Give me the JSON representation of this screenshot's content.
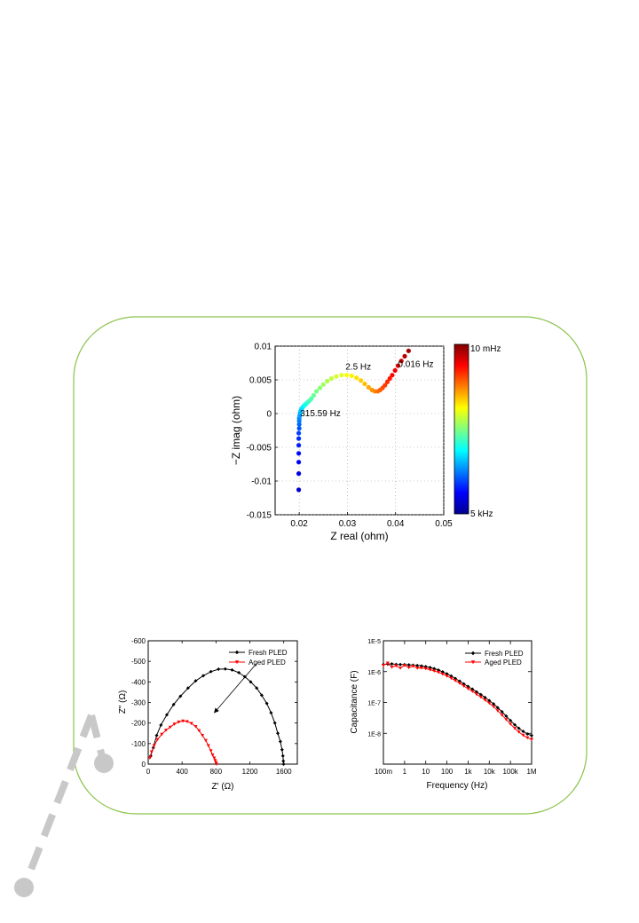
{
  "colors": {
    "frame": "#8bc34a",
    "connector": "#c8c8c8",
    "fresh": "#000000",
    "aged": "#ff0000"
  },
  "chart_data": [
    {
      "type": "scatter",
      "xlabel": "Z real (ohm)",
      "ylabel": "−Z imag (ohm)",
      "xlim": [
        0.015,
        0.05
      ],
      "ylim": [
        -0.015,
        0.01
      ],
      "xticks": [
        0.02,
        0.03,
        0.04,
        0.05
      ],
      "xtick_labels": [
        "0.02",
        "0.03",
        "0.04",
        "0.05"
      ],
      "yticks": [
        0.01,
        0.005,
        0,
        -0.005,
        -0.01,
        -0.015
      ],
      "ytick_labels": [
        "0.01",
        "0.005",
        "0",
        "-0.005",
        "-0.01",
        "-0.015"
      ],
      "grid": true,
      "colorbar": {
        "colormap": "jet",
        "top_label": "10 mHz",
        "bottom_label": "5 kHz"
      },
      "annotations": [
        {
          "text": "2.5 Hz",
          "x": 0.0296,
          "y": 0.0065
        },
        {
          "text": "0.016 Hz",
          "x": 0.0405,
          "y": 0.0069
        },
        {
          "text": "315.59 Hz",
          "x": 0.0202,
          "y": -0.0004
        }
      ],
      "points": [
        [
          0.0199,
          -0.0113
        ],
        [
          0.0199,
          -0.0089
        ],
        [
          0.0199,
          -0.0072
        ],
        [
          0.0199,
          -0.0059
        ],
        [
          0.0199,
          -0.0047
        ],
        [
          0.0199,
          -0.0037
        ],
        [
          0.0199,
          -0.0029
        ],
        [
          0.02,
          -0.0022
        ],
        [
          0.02,
          -0.0016
        ],
        [
          0.02,
          -0.0011
        ],
        [
          0.02,
          -0.0007
        ],
        [
          0.0201,
          -0.0003
        ],
        [
          0.0202,
          0.0001
        ],
        [
          0.0203,
          0.0004
        ],
        [
          0.0205,
          0.0007
        ],
        [
          0.0207,
          0.0009
        ],
        [
          0.0209,
          0.0011
        ],
        [
          0.0212,
          0.0013
        ],
        [
          0.0215,
          0.0015
        ],
        [
          0.0218,
          0.0017
        ],
        [
          0.0221,
          0.0019
        ],
        [
          0.0225,
          0.0022
        ],
        [
          0.023,
          0.0027
        ],
        [
          0.0236,
          0.0033
        ],
        [
          0.0243,
          0.0038
        ],
        [
          0.025,
          0.0043
        ],
        [
          0.0258,
          0.0048
        ],
        [
          0.0267,
          0.0052
        ],
        [
          0.0277,
          0.0055
        ],
        [
          0.0288,
          0.0057
        ],
        [
          0.0299,
          0.0057
        ],
        [
          0.0309,
          0.0056
        ],
        [
          0.0319,
          0.0053
        ],
        [
          0.0328,
          0.0049
        ],
        [
          0.0336,
          0.0044
        ],
        [
          0.0344,
          0.0039
        ],
        [
          0.0351,
          0.0035
        ],
        [
          0.0357,
          0.0033
        ],
        [
          0.0363,
          0.0033
        ],
        [
          0.0368,
          0.0035
        ],
        [
          0.0373,
          0.0038
        ],
        [
          0.0378,
          0.0042
        ],
        [
          0.0383,
          0.0047
        ],
        [
          0.0388,
          0.0052
        ],
        [
          0.0393,
          0.0057
        ],
        [
          0.0399,
          0.0064
        ],
        [
          0.0405,
          0.0071
        ],
        [
          0.0412,
          0.0078
        ],
        [
          0.0419,
          0.0085
        ],
        [
          0.0427,
          0.0093
        ]
      ]
    },
    {
      "type": "line",
      "xlabel": "Z' (Ω)",
      "ylabel": "Z\" (Ω)",
      "xlim": [
        0,
        1760
      ],
      "ylim": [
        0,
        -600
      ],
      "xticks": [
        0,
        400,
        800,
        1200,
        1600
      ],
      "xtick_labels": [
        "0",
        "400",
        "800",
        "1200",
        "1600"
      ],
      "yticks": [
        0,
        -100,
        -200,
        -300,
        -400,
        -500,
        -600
      ],
      "ytick_labels": [
        "0",
        "-100",
        "-200",
        "-300",
        "-400",
        "-500",
        "-600"
      ],
      "arrow": {
        "from": [
          1280,
          -490
        ],
        "to": [
          780,
          -250
        ]
      },
      "series": [
        {
          "name": "Fresh PLED",
          "color": "#000000",
          "marker": "diamond",
          "x": [
            30,
            60,
            100,
            150,
            220,
            300,
            380,
            470,
            560,
            650,
            740,
            830,
            910,
            990,
            1070,
            1140,
            1210,
            1280,
            1340,
            1400,
            1450,
            1495,
            1530,
            1560,
            1580,
            1590,
            1595,
            1598
          ],
          "y": [
            -40,
            -80,
            -140,
            -190,
            -240,
            -290,
            -330,
            -370,
            -405,
            -430,
            -450,
            -462,
            -463,
            -458,
            -445,
            -425,
            -400,
            -370,
            -335,
            -295,
            -250,
            -200,
            -150,
            -110,
            -70,
            -40,
            -15,
            0
          ]
        },
        {
          "name": "Aged PLED",
          "color": "#ff0000",
          "marker": "triangle-down",
          "x": [
            20,
            40,
            70,
            110,
            160,
            210,
            260,
            310,
            360,
            410,
            460,
            510,
            560,
            600,
            640,
            680,
            710,
            740,
            760,
            780,
            790,
            800,
            805
          ],
          "y": [
            -30,
            -60,
            -90,
            -120,
            -145,
            -165,
            -180,
            -195,
            -205,
            -210,
            -207,
            -198,
            -183,
            -163,
            -140,
            -115,
            -90,
            -65,
            -45,
            -30,
            -18,
            -8,
            0
          ]
        }
      ]
    },
    {
      "type": "line",
      "xlabel": "Frequency (Hz)",
      "ylabel": "Capacitance (F)",
      "xscale": "log",
      "yscale": "log",
      "xlim": [
        0.1,
        1000000
      ],
      "ylim": [
        1e-09,
        1e-05
      ],
      "xticks": [
        0.1,
        1,
        10,
        100,
        1000,
        10000,
        100000,
        1000000
      ],
      "xtick_labels": [
        "100m",
        "1",
        "10",
        "100",
        "1k",
        "10k",
        "100k",
        "1M"
      ],
      "yticks": [
        1e-05,
        1e-06,
        1e-07,
        1e-08
      ],
      "ytick_labels": [
        "1E-5",
        "1E-6",
        "1E-7",
        "1E-8"
      ],
      "series": [
        {
          "name": "Fresh PLED",
          "color": "#000000",
          "marker": "diamond",
          "x": [
            0.1,
            0.16,
            0.25,
            0.4,
            0.63,
            1,
            1.6,
            2.5,
            4,
            6.3,
            10,
            16,
            25,
            40,
            63,
            100,
            160,
            250,
            400,
            630,
            1000,
            1600,
            2500,
            4000,
            6300,
            10000,
            16000,
            25000,
            40000,
            63000,
            100000,
            160000,
            250000,
            400000,
            630000,
            1000000
          ],
          "y": [
            1.7e-06,
            1.75e-06,
            1.78e-06,
            1.72e-06,
            1.7e-06,
            1.68e-06,
            1.66e-06,
            1.62e-06,
            1.58e-06,
            1.52e-06,
            1.45e-06,
            1.36e-06,
            1.25e-06,
            1.12e-06,
            9.8e-07,
            8.5e-07,
            7.2e-07,
            6e-07,
            4.9e-07,
            4e-07,
            3.3e-07,
            2.7e-07,
            2.2e-07,
            1.8e-07,
            1.45e-07,
            1.15e-07,
            9e-08,
            6.8e-08,
            5e-08,
            3.6e-08,
            2.6e-08,
            1.9e-08,
            1.45e-08,
            1.15e-08,
            9.5e-09,
            8.5e-09
          ]
        },
        {
          "name": "Aged PLED",
          "color": "#ff0000",
          "marker": "triangle-down",
          "x": [
            0.1,
            0.16,
            0.25,
            0.4,
            0.63,
            1,
            1.6,
            2.5,
            4,
            6.3,
            10,
            16,
            25,
            40,
            63,
            100,
            160,
            250,
            400,
            630,
            1000,
            1600,
            2500,
            4000,
            6300,
            10000,
            16000,
            25000,
            40000,
            63000,
            100000,
            160000,
            250000,
            400000,
            630000,
            1000000
          ],
          "y": [
            1.6e-06,
            1.9e-06,
            1.4e-06,
            1.55e-06,
            1.3e-06,
            1.6e-06,
            1.35e-06,
            1.5e-06,
            1.3e-06,
            1.32e-06,
            1.25e-06,
            1.15e-06,
            1.05e-06,
            9.5e-07,
            8.3e-07,
            7.2e-07,
            6.1e-07,
            5.1e-07,
            4.2e-07,
            3.4e-07,
            2.8e-07,
            2.3e-07,
            1.85e-07,
            1.5e-07,
            1.2e-07,
            9.5e-08,
            7.3e-08,
            5.4e-08,
            3.9e-08,
            2.8e-08,
            2e-08,
            1.45e-08,
            1.1e-08,
            8.7e-09,
            7.2e-09,
            6.3e-09
          ]
        }
      ]
    }
  ]
}
